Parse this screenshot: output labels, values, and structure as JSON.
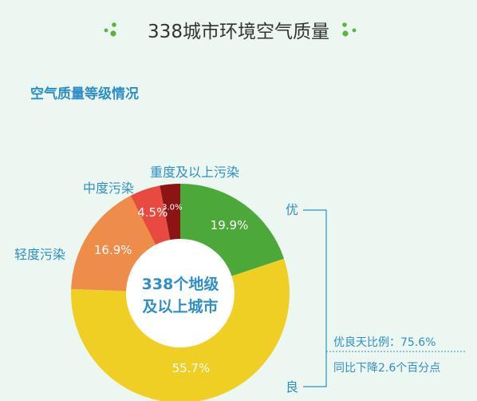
{
  "header": {
    "title": "338城市环境空气质量"
  },
  "section": {
    "subtitle": "空气质量等级情况"
  },
  "chart_data": {
    "type": "pie",
    "center_text": [
      "338个地级",
      "及以上城市"
    ],
    "slices": [
      {
        "name": "优",
        "value": 19.9,
        "label": "19.9%",
        "color": "#4ca838"
      },
      {
        "name": "良",
        "value": 55.7,
        "label": "55.7%",
        "color": "#f0cf24"
      },
      {
        "name": "轻度污染",
        "value": 16.9,
        "label": "16.9%",
        "color": "#ee8c4a"
      },
      {
        "name": "中度污染",
        "value": 4.5,
        "label": "4.5%",
        "color": "#e84a3f"
      },
      {
        "name": "重度及以上污染",
        "value": 3.0,
        "label": "3.0%",
        "color": "#8c1414"
      }
    ],
    "bracket": {
      "top_label": "优",
      "bottom_label": "良",
      "stat_line1": "优良天比例：75.6%",
      "stat_line2": "同比下降2.6个百分点"
    }
  }
}
